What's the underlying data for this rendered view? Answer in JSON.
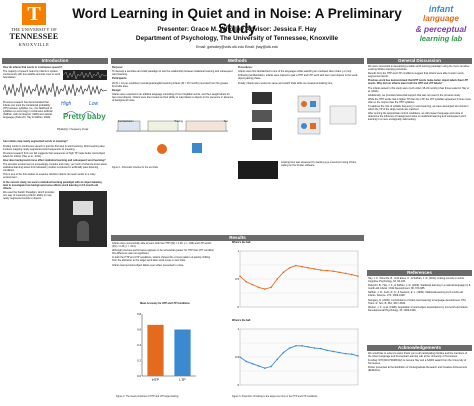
{
  "header": {
    "university_line1": "THE UNIVERSITY OF",
    "university_line2": "TENNESSEE",
    "university_line3": "KNOXVILLE",
    "title": "Word Learning in Quiet and in Noise: A Preliminary Study",
    "presenter": "Presenter: Grace M. Wholley   Advisor: Jessica F. Hay",
    "department": "Department of Psychology, The University of Tennessee, Knoxville",
    "emails": "Email: gwholley@vols.utk.edu    Email: jhay@utk.edu",
    "lab_logo": [
      "infant",
      "language",
      "& perceptual",
      "learning lab"
    ]
  },
  "sections": {
    "introduction": "Introduction",
    "methods": "Methods",
    "general_discussion": "General Discussion",
    "results": "Results",
    "references": "References",
    "acknowledgements": "Acknowledgements"
  },
  "intro": {
    "q1": "How do infants find words in continuous speech?",
    "b1": "The majority of speech heard by infants is spoken continuously with few reliable acoustic cues to word boundaries.",
    "b2": "Previous research has demonstrated that infants can track the transitional probability (TP) between syllables (i.e., the likelihood of syllables co-occurring) in continuous artificial (Saffran, Aslin & Newport, 1996) and natural languages (Pelucchi, Hay & Saffran, 2009).",
    "word_high": "High",
    "word_low": "Low",
    "word_pretty": "Pretty",
    "word_baby": "baby",
    "note_tp": "P(baby|ty) = frequency of pair",
    "q2": "Can infants map newly segmented words to meaning?",
    "b3": "Finding words in continuous speech is just the first step in word learning. Word learning also involves mapping newly segmented word sequences to meaning.",
    "b4": "Previous research from our lab suggests that sequences of high TP make better word-object labels for infants (Hay et al., 2011).",
    "q3": "How does background noise affect statistical learning and subsequent word learning?",
    "b5": "The acoustic environment is exceedingly complex and noisy, yet much of what we know about statistical learning arises from laboratory studies conducted in artificially quiet listening conditions.",
    "b6": "This is one of the first studies to examine whether infants can learn words in a noisy environment.",
    "q4": "In the current study, we used a statistical learning paradigm with an object-labeling task to investigate how background noise affects word learning in 15-month-old infants.",
    "b7": "We used the Switch Paradigm, which provides one way of measuring infants' ability to map newly segmented words to objects."
  },
  "methods": {
    "purpose_h": "Purpose:",
    "purpose": "To develop a sensitive and valid paradigm to test the relationship between statistical learning and subsequent word learning.",
    "participants_h": "Participants:",
    "participants": "20 (N = 10 per condition) monolingual English-learning infants (M = 15 months) recruited from the greater Knoxville area.",
    "design_h": "Design:",
    "design": "Infants were exposed to an artificial language consisting of four trisyllabic words, and then taught labels for two novel objects. Infants were then tested on their ability to map labels to objects in the presence or absence of background noise.",
    "proc_h": "Procedures:",
    "proc1": "Infants were first familiarized to one of the languages while watching an unrelated silent video (~2 min).",
    "proc2": "Following familiarization, infants were trained to pair a HTP and LTP word with two novel objects in the word-object pairing phase.",
    "proc3": "Finally, infants were tested on same and switch trials while we measured looking time.",
    "figure_caption": "Figure 1. Schematic timeline for the test trials",
    "timeline_labels": [
      "Familiarization",
      "Training",
      "Test"
    ],
    "eye_caption": "Looking time was assessed by tracking eye movement using off-line coding on the iCoder software."
  },
  "results": {
    "r1": "Infants were successfully able to learn both the HTP (t(9) = 2.26, p = .036) and LTP words (t(9) = 2.30, p = .014).",
    "r2": "Although previous performance appears to be somewhat greater for HTP than LTP condition this difference was not significant.",
    "r3": "In both the HTP and LTP conditions, infants showed the correct pattern of quickly shifting from the distractor to the target word after word onset on test trials.",
    "r4": "Infants learned word-object labels even when presented in noise.",
    "chart_title": "Mean Accuracy for HTP and LTP Conditions",
    "line1_label": "Where's the ball",
    "line2_label": "Where's the ball",
    "fig2_caption": "Figure 2. The mean proportion of HTP and LTP target looking.",
    "fig3_caption": "Figure 3. Proportion of looking to the target over time in the HTP and LTP conditions."
  },
  "discussion": {
    "d1": "We were successful in developing a viable word learning paradigm using the more sensitive Looking-While-Listening procedure.",
    "d2": "Results from the HTP and LTP conditions suggest that infants were able to learn newly segmented words.",
    "d_h": "Previous work has demonstrated that HTP words make better object labels than LTP words. Why did our infants learn both the HTP and LTP labels?",
    "d3": "The infants tested in this study were much older (15-24 months) than those tested in Hay et al. (2011).",
    "d4": "Additionally, we provided referential support that was not used in the previous study.",
    "d5": "While the HTP words had a higher TP than the LTP, the LTP syllables appeared 3 times more often in the corpus than the HTP syllables.",
    "d6": "To address the role of syllable frequency in word learning, we have developed two words in which the TP of the target words are matched.",
    "d7": "After running the appropriate control conditions, we will present language and noise to determine the influence of background noise on statistical learning and subsequent word learning in a more ecologically valid setting."
  },
  "references": [
    "Hay, J. F., Pelucchi, B., Graf Estes, K., & Saffran, J. R. (2011). Linking sounds to words. Cognitive Psychology, 63, 93-106.",
    "Pelucchi, B., Hay, J. F., & Saffran, J. R. (2009). Statistical learning in a natural language by 8-month-old infants. Child Development, 80, 674-685.",
    "Saffran, J. R., Aslin, R. N., & Newport, E. L. (1996). Statistical learning by 8-month-old infants. Science, 274, 1926-1928.",
    "Swingley, D. (2009). Contributions of infant word learning to language development. Phil. Trans. R. Soc. B, 364, 3617-3632.",
    "Werker, J. F., et al. (1998). Acquisition of word-object associations by 14-month-old infants. Developmental Psychology, 34, 1289-1309."
  ],
  "acknowledgements": {
    "a1": "We would like to extend a warm thank you to all participating families and the members of the Infant Language and Perceptual Learning Lab at the University of Tennessee.",
    "a2": "Funding: NIH (R01 HD083312) to Jessica Hay and a SARIF award from the University of Tennessee.",
    "a3": "Poster presented at the Exhibition of Undergraduate Research and Creative Achievement (EURēCA)."
  },
  "chart_data": [
    {
      "type": "bar",
      "title": "Mean Accuracy for HTP and LTP Conditions",
      "categories": [
        "HTP",
        "LTP"
      ],
      "values": [
        0.66,
        0.6
      ],
      "ylim": [
        0,
        0.8
      ]
    },
    {
      "type": "line",
      "title": "",
      "x": [
        0,
        1,
        2,
        3,
        4,
        5,
        6,
        7,
        8,
        9,
        10,
        11,
        12,
        13,
        14,
        15,
        16,
        17,
        18,
        19
      ],
      "series": [
        {
          "name": "",
          "values": [
            0.55,
            0.45,
            0.4,
            0.35,
            0.32,
            0.35,
            0.5,
            0.62,
            0.7,
            0.74,
            0.72,
            0.7,
            0.68,
            0.66,
            0.65,
            0.64,
            0.62,
            0.6,
            0.58,
            0.55
          ]
        }
      ],
      "ylim": [
        0,
        1
      ]
    },
    {
      "type": "line",
      "title": "",
      "x": [
        0,
        1,
        2,
        3,
        4,
        5,
        6,
        7,
        8,
        9,
        10,
        11,
        12,
        13,
        14,
        15,
        16,
        17,
        18,
        19
      ],
      "series": [
        {
          "name": "",
          "values": [
            0.5,
            0.42,
            0.38,
            0.34,
            0.3,
            0.33,
            0.46,
            0.58,
            0.66,
            0.7,
            0.7,
            0.68,
            0.66,
            0.65,
            0.62,
            0.6,
            0.58,
            0.56,
            0.55,
            0.52
          ]
        }
      ],
      "ylim": [
        0,
        1
      ]
    }
  ]
}
